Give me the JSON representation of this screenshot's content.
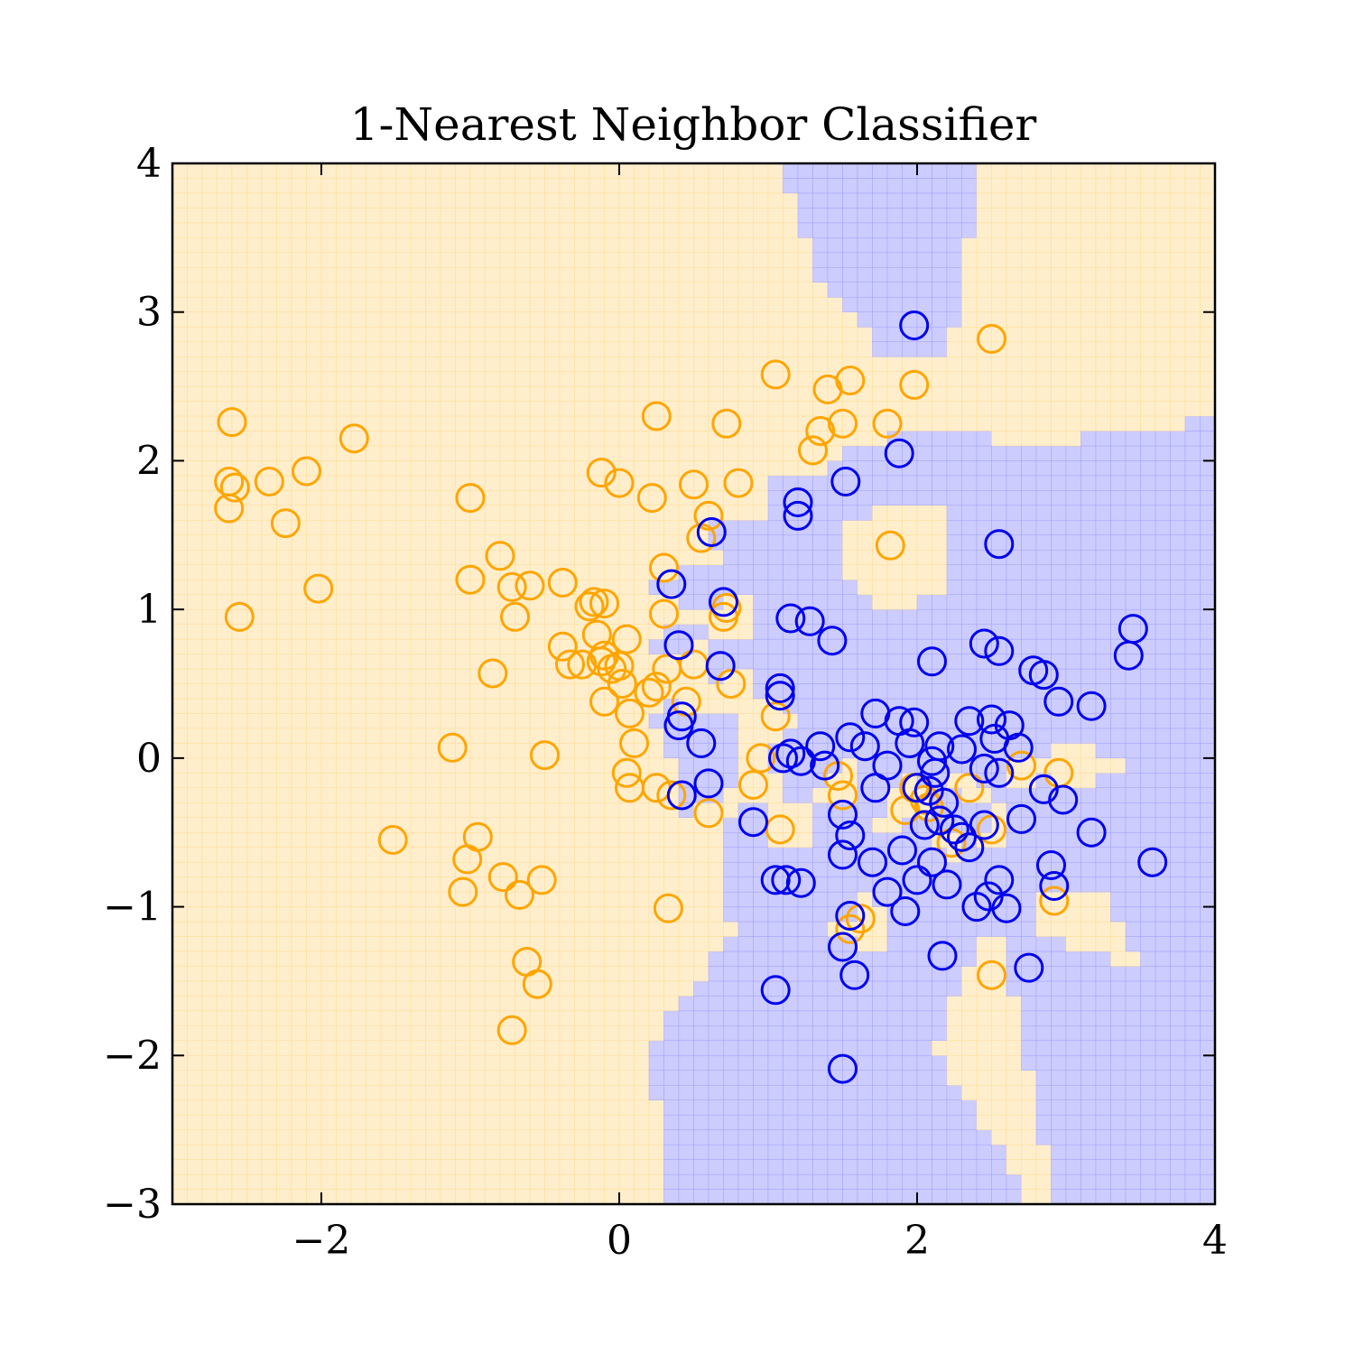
{
  "chart_data": {
    "type": "scatter",
    "title": "1-Nearest Neighbor Classifier",
    "xlabel": "",
    "ylabel": "",
    "xlim": [
      -3,
      4
    ],
    "ylim": [
      -3,
      4
    ],
    "x_ticks": [
      -2,
      0,
      2,
      4
    ],
    "y_ticks": [
      -3,
      -2,
      -1,
      0,
      1,
      2,
      3,
      4
    ],
    "x_tick_labels": [
      "−2",
      "0",
      "2",
      "4"
    ],
    "y_tick_labels": [
      "−3",
      "−2",
      "−1",
      "0",
      "1",
      "2",
      "3",
      "4"
    ],
    "grid": false,
    "legend": "none",
    "marker": "open circle",
    "colors": {
      "class_0_points": "#FFA500",
      "class_1_points": "#0000EE",
      "class_0_region": "#FFEECC",
      "class_1_region": "#CCCCFF"
    },
    "series": [
      {
        "class": 0,
        "points": [
          [
            -2.6,
            2.26
          ],
          [
            -2.62,
            1.86
          ],
          [
            -2.58,
            1.82
          ],
          [
            -2.62,
            1.68
          ],
          [
            -2.35,
            1.86
          ],
          [
            -2.1,
            1.93
          ],
          [
            -1.78,
            2.15
          ],
          [
            -2.24,
            1.58
          ],
          [
            -2.02,
            1.14
          ],
          [
            -2.55,
            0.95
          ],
          [
            -1.0,
            1.75
          ],
          [
            -0.8,
            1.36
          ],
          [
            -1.0,
            1.2
          ],
          [
            -0.72,
            1.15
          ],
          [
            -0.6,
            1.16
          ],
          [
            -0.38,
            1.18
          ],
          [
            -0.7,
            0.95
          ],
          [
            -0.85,
            0.57
          ],
          [
            -0.38,
            0.75
          ],
          [
            -0.33,
            0.63
          ],
          [
            -0.25,
            0.63
          ],
          [
            -0.2,
            1.02
          ],
          [
            -0.17,
            1.05
          ],
          [
            -0.1,
            1.04
          ],
          [
            -0.15,
            0.83
          ],
          [
            -0.1,
            0.69
          ],
          [
            -0.12,
            0.65
          ],
          [
            -0.05,
            0.6
          ],
          [
            0.0,
            0.62
          ],
          [
            0.05,
            0.8
          ],
          [
            0.02,
            0.5
          ],
          [
            0.07,
            0.3
          ],
          [
            -0.1,
            0.38
          ],
          [
            0.1,
            0.1
          ],
          [
            0.05,
            -0.1
          ],
          [
            0.07,
            -0.2
          ],
          [
            0.2,
            0.44
          ],
          [
            0.25,
            0.48
          ],
          [
            0.32,
            0.6
          ],
          [
            0.25,
            -0.2
          ],
          [
            0.35,
            -0.25
          ],
          [
            0.45,
            0.38
          ],
          [
            0.5,
            0.63
          ],
          [
            0.6,
            -0.37
          ],
          [
            0.3,
            0.97
          ],
          [
            0.3,
            1.28
          ],
          [
            0.5,
            1.84
          ],
          [
            0.55,
            1.48
          ],
          [
            0.6,
            1.63
          ],
          [
            0.7,
            0.95
          ],
          [
            0.72,
            1.01
          ],
          [
            0.75,
            0.5
          ],
          [
            0.9,
            -0.18
          ],
          [
            0.95,
            0.0
          ],
          [
            1.05,
            0.28
          ],
          [
            1.08,
            -0.48
          ],
          [
            -0.12,
            1.92
          ],
          [
            0.0,
            1.85
          ],
          [
            0.25,
            2.3
          ],
          [
            0.22,
            1.75
          ],
          [
            0.72,
            2.25
          ],
          [
            0.8,
            1.85
          ],
          [
            1.05,
            2.58
          ],
          [
            1.3,
            2.07
          ],
          [
            1.35,
            2.2
          ],
          [
            1.4,
            2.48
          ],
          [
            1.5,
            2.25
          ],
          [
            1.55,
            2.54
          ],
          [
            1.8,
            2.25
          ],
          [
            1.98,
            2.51
          ],
          [
            2.5,
            2.82
          ],
          [
            1.82,
            1.43
          ],
          [
            -1.12,
            0.07
          ],
          [
            -0.5,
            0.02
          ],
          [
            -1.52,
            -0.55
          ],
          [
            -0.95,
            -0.53
          ],
          [
            -1.02,
            -0.68
          ],
          [
            -1.05,
            -0.9
          ],
          [
            -0.78,
            -0.8
          ],
          [
            -0.67,
            -0.92
          ],
          [
            -0.52,
            -0.82
          ],
          [
            -0.62,
            -1.37
          ],
          [
            -0.55,
            -1.52
          ],
          [
            -0.72,
            -1.83
          ],
          [
            0.33,
            -1.01
          ],
          [
            1.47,
            -0.12
          ],
          [
            1.5,
            -0.25
          ],
          [
            1.55,
            -1.15
          ],
          [
            1.62,
            -1.08
          ],
          [
            1.92,
            -0.35
          ],
          [
            1.98,
            -0.2
          ],
          [
            2.05,
            -0.28
          ],
          [
            2.08,
            -0.33
          ],
          [
            2.23,
            -0.57
          ],
          [
            2.35,
            -0.2
          ],
          [
            2.5,
            -0.48
          ],
          [
            2.7,
            -0.05
          ],
          [
            2.95,
            -0.1
          ],
          [
            2.92,
            -0.96
          ],
          [
            2.5,
            -1.46
          ]
        ]
      },
      {
        "class": 1,
        "points": [
          [
            1.98,
            2.91
          ],
          [
            1.88,
            2.05
          ],
          [
            1.52,
            1.86
          ],
          [
            1.2,
            1.72
          ],
          [
            1.2,
            1.63
          ],
          [
            2.55,
            1.44
          ],
          [
            0.62,
            1.52
          ],
          [
            0.35,
            1.17
          ],
          [
            0.7,
            1.05
          ],
          [
            1.15,
            0.94
          ],
          [
            1.28,
            0.92
          ],
          [
            1.43,
            0.79
          ],
          [
            0.4,
            0.76
          ],
          [
            0.68,
            0.62
          ],
          [
            2.1,
            0.65
          ],
          [
            2.45,
            0.77
          ],
          [
            2.55,
            0.72
          ],
          [
            2.78,
            0.59
          ],
          [
            2.85,
            0.56
          ],
          [
            2.95,
            0.38
          ],
          [
            3.17,
            0.35
          ],
          [
            3.45,
            0.87
          ],
          [
            3.42,
            0.69
          ],
          [
            1.08,
            0.47
          ],
          [
            1.08,
            0.42
          ],
          [
            0.4,
            0.22
          ],
          [
            0.42,
            0.28
          ],
          [
            0.55,
            0.1
          ],
          [
            1.1,
            0.0
          ],
          [
            1.15,
            0.03
          ],
          [
            1.22,
            -0.02
          ],
          [
            1.35,
            0.08
          ],
          [
            1.38,
            -0.05
          ],
          [
            1.55,
            0.14
          ],
          [
            1.65,
            0.08
          ],
          [
            1.72,
            0.3
          ],
          [
            1.8,
            -0.05
          ],
          [
            1.88,
            0.25
          ],
          [
            1.95,
            0.1
          ],
          [
            1.98,
            0.24
          ],
          [
            2.1,
            -0.02
          ],
          [
            2.12,
            -0.1
          ],
          [
            2.15,
            0.08
          ],
          [
            2.3,
            0.06
          ],
          [
            2.35,
            0.25
          ],
          [
            2.45,
            -0.07
          ],
          [
            2.5,
            0.26
          ],
          [
            2.52,
            0.13
          ],
          [
            2.55,
            -0.1
          ],
          [
            2.62,
            0.22
          ],
          [
            2.68,
            0.07
          ],
          [
            2.85,
            -0.21
          ],
          [
            2.98,
            -0.28
          ],
          [
            0.42,
            -0.25
          ],
          [
            0.6,
            -0.17
          ],
          [
            0.9,
            -0.43
          ],
          [
            1.72,
            -0.2
          ],
          [
            2.0,
            -0.2
          ],
          [
            2.08,
            -0.22
          ],
          [
            2.18,
            -0.3
          ],
          [
            2.15,
            -0.42
          ],
          [
            2.05,
            -0.45
          ],
          [
            2.25,
            -0.48
          ],
          [
            2.3,
            -0.53
          ],
          [
            2.35,
            -0.6
          ],
          [
            2.45,
            -0.45
          ],
          [
            1.5,
            -0.38
          ],
          [
            1.55,
            -0.52
          ],
          [
            1.5,
            -0.65
          ],
          [
            1.7,
            -0.7
          ],
          [
            1.9,
            -0.62
          ],
          [
            2.1,
            -0.7
          ],
          [
            2.0,
            -0.82
          ],
          [
            2.2,
            -0.85
          ],
          [
            2.4,
            -1.0
          ],
          [
            2.48,
            -0.93
          ],
          [
            2.55,
            -0.82
          ],
          [
            2.6,
            -1.01
          ],
          [
            2.7,
            -0.41
          ],
          [
            2.9,
            -0.72
          ],
          [
            2.92,
            -0.86
          ],
          [
            3.17,
            -0.5
          ],
          [
            3.58,
            -0.7
          ],
          [
            1.05,
            -0.82
          ],
          [
            1.12,
            -0.82
          ],
          [
            1.22,
            -0.84
          ],
          [
            1.8,
            -0.9
          ],
          [
            1.92,
            -1.03
          ],
          [
            1.55,
            -1.06
          ],
          [
            1.5,
            -1.27
          ],
          [
            1.58,
            -1.46
          ],
          [
            2.17,
            -1.33
          ],
          [
            2.75,
            -1.41
          ],
          [
            1.05,
            -1.56
          ],
          [
            1.5,
            -2.09
          ]
        ]
      }
    ]
  }
}
